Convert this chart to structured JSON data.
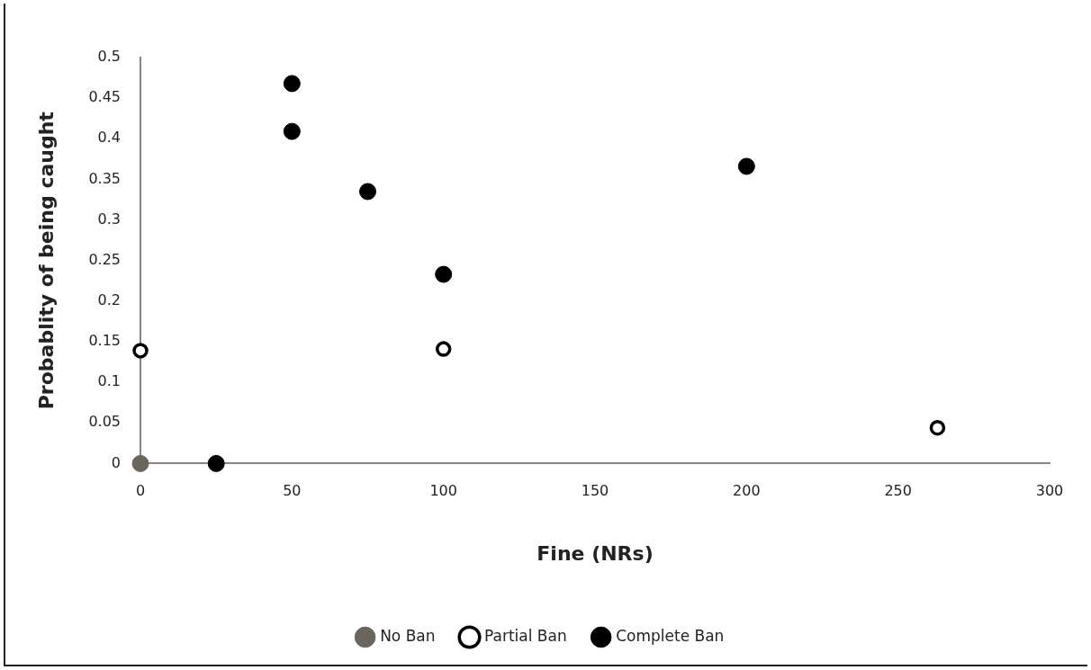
{
  "chart_data": {
    "type": "scatter",
    "xlabel": "Fine (NRs)",
    "ylabel": "Probablity of being caught",
    "series": [
      {
        "name": "No Ban",
        "color": "#6b6560",
        "x": [
          0
        ],
        "values": [
          0
        ]
      },
      {
        "name": "Partial Ban",
        "color": "#ffffff",
        "x": [
          0,
          100,
          263
        ],
        "values": [
          0.139,
          0.141,
          0.044
        ]
      },
      {
        "name": "Complete Ban",
        "color": "#000000",
        "x": [
          25,
          50,
          50,
          75,
          100,
          200
        ],
        "values": [
          0,
          0.468,
          0.409,
          0.335,
          0.233,
          0.366
        ]
      }
    ],
    "xlim": [
      0,
      300
    ],
    "xticks": [
      0,
      50,
      100,
      150,
      200,
      250,
      300
    ],
    "ylim": [
      0,
      0.5
    ],
    "yticks": [
      0,
      0.05,
      0.1,
      0.15,
      0.2,
      0.25,
      0.3,
      0.35,
      0.4,
      0.45,
      0.5
    ],
    "grid": false,
    "legend": "bottom",
    "marker": "circle"
  }
}
